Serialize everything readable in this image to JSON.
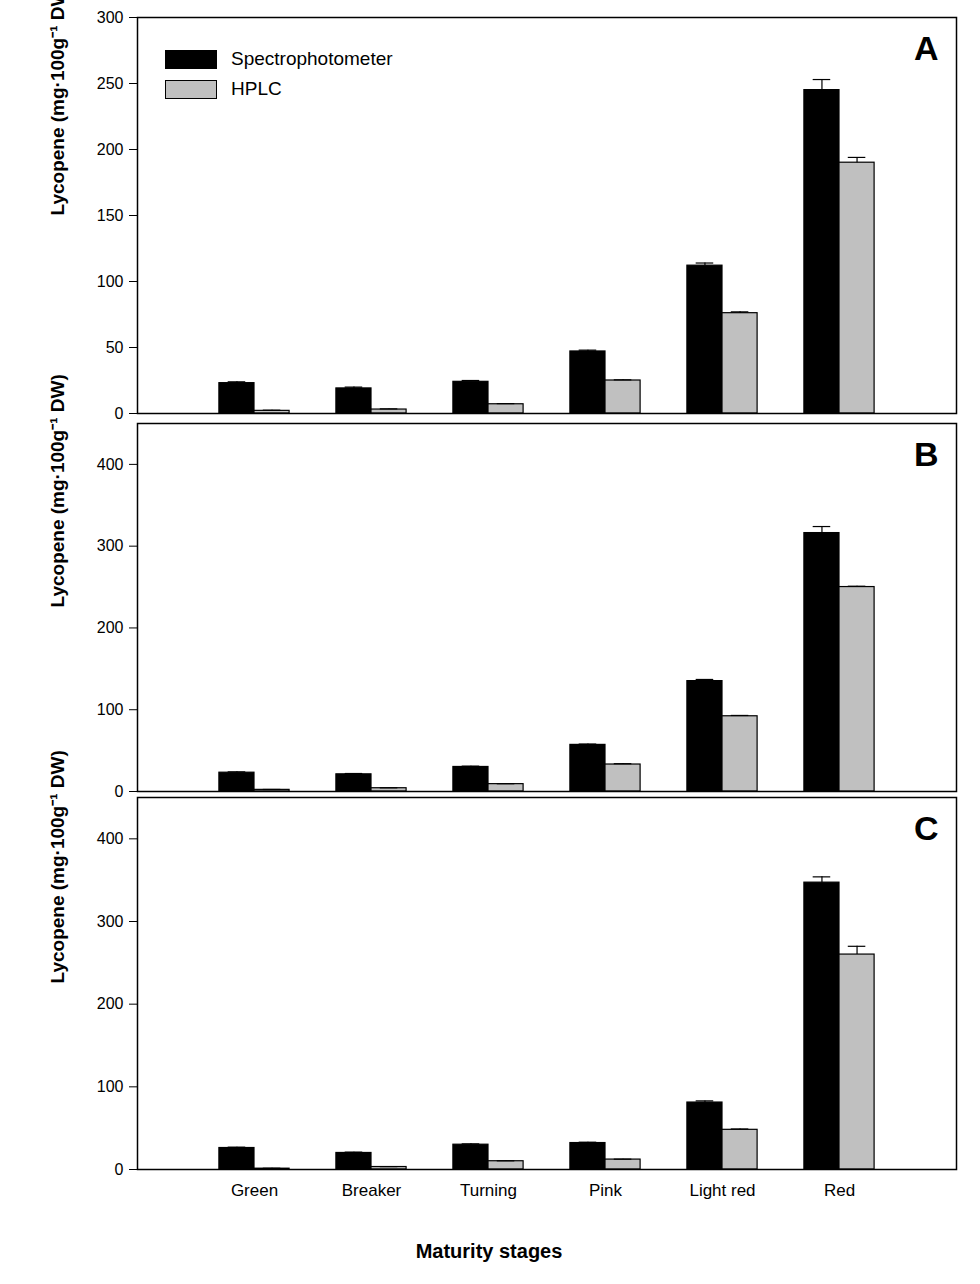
{
  "chart_data": [
    {
      "type": "bar",
      "title": "A",
      "categories": [
        "Green",
        "Breaker",
        "Turning",
        "Pink",
        "Light red",
        "Red"
      ],
      "series": [
        {
          "name": "Spectrophotometer",
          "color": "#000000",
          "values": [
            23,
            19,
            24,
            47,
            112,
            245
          ],
          "errors": [
            1,
            1,
            1,
            1,
            2,
            8
          ]
        },
        {
          "name": "HPLC",
          "color": "#c0c0c0",
          "values": [
            2,
            3,
            7,
            25,
            76,
            190
          ],
          "errors": [
            0.5,
            0.5,
            0.5,
            0.5,
            1,
            4
          ]
        }
      ],
      "y_label": "Lycopene (mg·100g⁻¹ DW)",
      "ylim": [
        0,
        300
      ],
      "yticks": [
        0,
        50,
        100,
        150,
        200,
        250,
        300
      ],
      "legend": "top-left",
      "tick_labels": "y"
    },
    {
      "type": "bar",
      "title": "B",
      "categories": [
        "Green",
        "Breaker",
        "Turning",
        "Pink",
        "Light red",
        "Red"
      ],
      "series": [
        {
          "name": "Spectrophotometer",
          "color": "#000000",
          "values": [
            23,
            21,
            30,
            57,
            135,
            316
          ],
          "errors": [
            1,
            1,
            1,
            1,
            2,
            8
          ]
        },
        {
          "name": "HPLC",
          "color": "#c0c0c0",
          "values": [
            2,
            4,
            9,
            33,
            92,
            250
          ],
          "errors": [
            0.5,
            0.5,
            0.5,
            1,
            1,
            1
          ]
        }
      ],
      "y_label": "Lycopene (mg·100g⁻¹ DW)",
      "ylim": [
        0,
        450
      ],
      "yticks": [
        0,
        100,
        200,
        300,
        400
      ],
      "tick_labels": "y"
    },
    {
      "type": "bar",
      "title": "C",
      "categories": [
        "Green",
        "Breaker",
        "Turning",
        "Pink",
        "Light red",
        "Red"
      ],
      "series": [
        {
          "name": "Spectrophotometer",
          "color": "#000000",
          "values": [
            26,
            20,
            30,
            32,
            81,
            347
          ],
          "errors": [
            1,
            1,
            1,
            1,
            2,
            7
          ]
        },
        {
          "name": "HPLC",
          "color": "#c0c0c0",
          "values": [
            1,
            3,
            10,
            12,
            48,
            260
          ],
          "errors": [
            0.5,
            0.5,
            0.5,
            0.5,
            1,
            10
          ]
        }
      ],
      "y_label": "Lycopene (mg·100g⁻¹ DW)",
      "x_label": "Maturity stages",
      "ylim": [
        0,
        450
      ],
      "yticks": [
        0,
        100,
        200,
        300,
        400
      ]
    }
  ]
}
